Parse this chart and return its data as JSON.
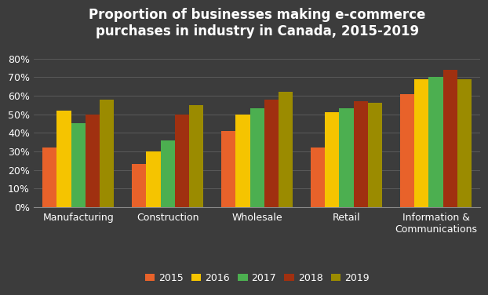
{
  "title": "Proportion of businesses making e-commerce\npurchases in industry in Canada, 2015-2019",
  "categories": [
    "Manufacturing",
    "Construction",
    "Wholesale",
    "Retail",
    "Information &\nCommunications"
  ],
  "years": [
    "2015",
    "2016",
    "2017",
    "2018",
    "2019"
  ],
  "values": {
    "2015": [
      0.32,
      0.23,
      0.41,
      0.32,
      0.61
    ],
    "2016": [
      0.52,
      0.3,
      0.5,
      0.51,
      0.69
    ],
    "2017": [
      0.45,
      0.36,
      0.53,
      0.53,
      0.7
    ],
    "2018": [
      0.5,
      0.5,
      0.58,
      0.57,
      0.74
    ],
    "2019": [
      0.58,
      0.55,
      0.62,
      0.56,
      0.69
    ]
  },
  "bar_colors": {
    "2015": "#E8622A",
    "2016": "#F5C400",
    "2017": "#4CAF50",
    "2018": "#A03010",
    "2019": "#9B8B00"
  },
  "background_color": "#3C3C3C",
  "text_color": "#ffffff",
  "ylim": [
    0,
    0.88
  ],
  "yticks": [
    0.0,
    0.1,
    0.2,
    0.3,
    0.4,
    0.5,
    0.6,
    0.7,
    0.8
  ],
  "ytick_labels": [
    "0%",
    "10%",
    "20%",
    "30%",
    "40%",
    "50%",
    "60%",
    "70%",
    "80%"
  ],
  "title_fontsize": 12,
  "tick_fontsize": 9,
  "legend_fontsize": 9,
  "bar_width": 0.16
}
